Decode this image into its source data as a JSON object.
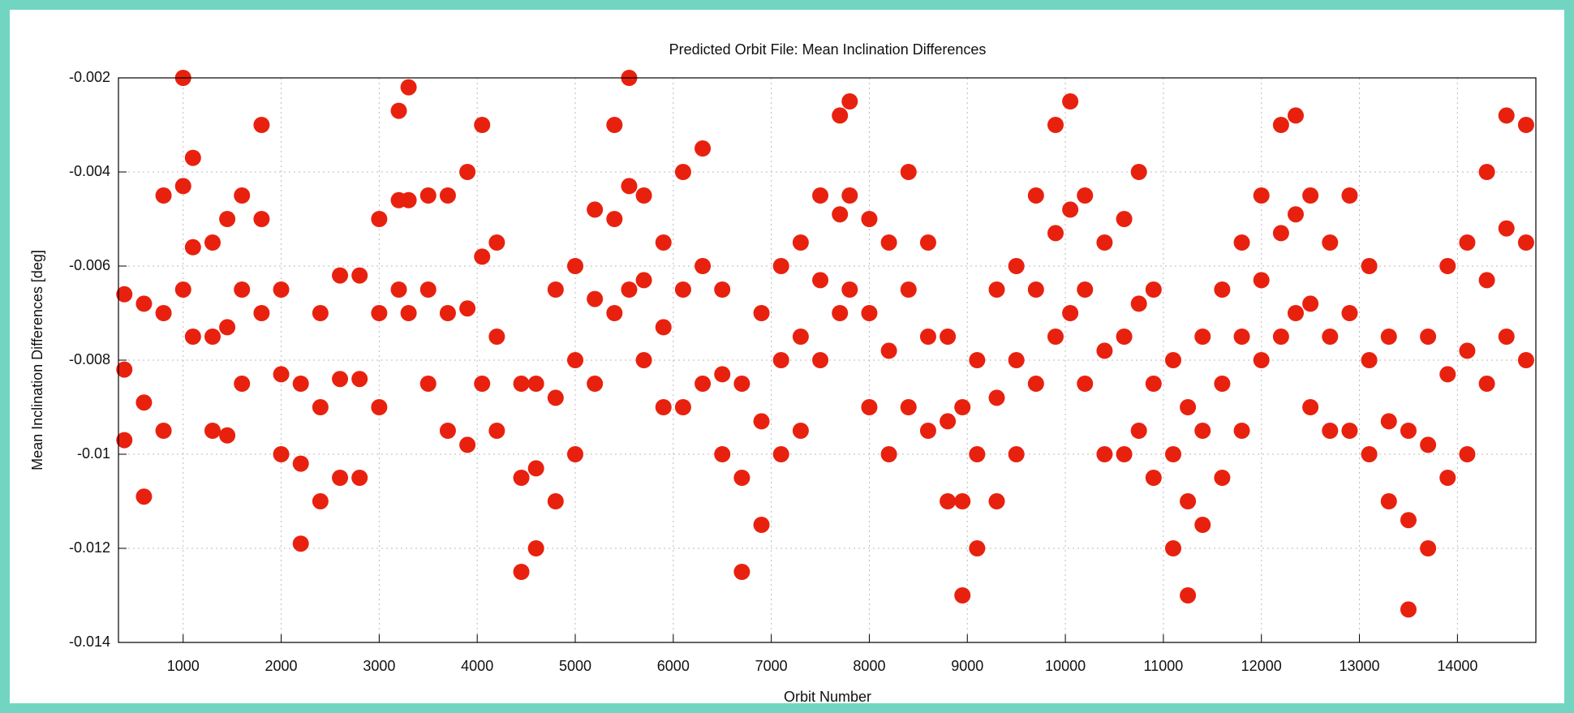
{
  "chart_data": {
    "type": "scatter",
    "title": "Predicted Orbit File: Mean Inclination Differences",
    "x_label": "Orbit Number",
    "y_label": "Mean Inclination Differences [deg]",
    "xlim": [
      340,
      14800
    ],
    "ylim": [
      -0.014,
      -0.002
    ],
    "xticks": [
      1000,
      2000,
      3000,
      4000,
      5000,
      6000,
      7000,
      8000,
      9000,
      10000,
      11000,
      12000,
      13000,
      14000
    ],
    "yticks": [
      -0.014,
      -0.012,
      -0.01,
      -0.008,
      -0.006,
      -0.004,
      -0.002
    ],
    "grid": true,
    "series": [
      {
        "color": "#e8210f",
        "x": [
          400,
          400,
          400,
          600,
          600,
          600,
          800,
          800,
          800,
          1000,
          1000,
          1000,
          1100,
          1100,
          1100,
          1300,
          1300,
          1300,
          1450,
          1450,
          1450,
          1600,
          1600,
          1600,
          1800,
          1800,
          1800,
          2000,
          2000,
          2000,
          2200,
          2200,
          2200,
          2400,
          2400,
          2400,
          2600,
          2600,
          2600,
          2800,
          2800,
          2800,
          3000,
          3000,
          3000,
          3200,
          3200,
          3200,
          3300,
          3300,
          3300,
          3500,
          3500,
          3500,
          3700,
          3700,
          3700,
          3900,
          3900,
          3900,
          4050,
          4050,
          4050,
          4200,
          4200,
          4200,
          4450,
          4450,
          4450,
          4600,
          4600,
          4600,
          4800,
          4800,
          4800,
          5000,
          5000,
          5000,
          5200,
          5200,
          5200,
          5400,
          5400,
          5400,
          5550,
          5550,
          5550,
          5700,
          5700,
          5700,
          5900,
          5900,
          5900,
          6100,
          6100,
          6100,
          6300,
          6300,
          6300,
          6500,
          6500,
          6500,
          6700,
          6700,
          6700,
          6900,
          6900,
          6900,
          7100,
          7100,
          7100,
          7300,
          7300,
          7300,
          7500,
          7500,
          7500,
          7700,
          7700,
          7700,
          7800,
          7800,
          7800,
          8000,
          8000,
          8000,
          8200,
          8200,
          8200,
          8400,
          8400,
          8400,
          8600,
          8600,
          8600,
          8800,
          8800,
          8800,
          8950,
          8950,
          8950,
          9100,
          9100,
          9100,
          9300,
          9300,
          9300,
          9500,
          9500,
          9500,
          9700,
          9700,
          9700,
          9900,
          9900,
          9900,
          10050,
          10050,
          10050,
          10200,
          10200,
          10200,
          10400,
          10400,
          10400,
          10600,
          10600,
          10600,
          10750,
          10750,
          10750,
          10900,
          10900,
          10900,
          11100,
          11100,
          11100,
          11250,
          11250,
          11250,
          11400,
          11400,
          11400,
          11600,
          11600,
          11600,
          11800,
          11800,
          11800,
          12000,
          12000,
          12000,
          12200,
          12200,
          12200,
          12350,
          12350,
          12350,
          12500,
          12500,
          12500,
          12700,
          12700,
          12700,
          12900,
          12900,
          12900,
          13100,
          13100,
          13100,
          13300,
          13300,
          13300,
          13500,
          13500,
          13500,
          13700,
          13700,
          13700,
          13900,
          13900,
          13900,
          14100,
          14100,
          14100,
          14300,
          14300,
          14300,
          14500,
          14500,
          14500,
          14700,
          14700,
          14700
        ],
        "values": [
          -0.0097,
          -0.0082,
          -0.0066,
          -0.0109,
          -0.0089,
          -0.0068,
          -0.0095,
          -0.007,
          -0.0045,
          -0.0065,
          -0.0043,
          -0.002,
          -0.0075,
          -0.0056,
          -0.0037,
          -0.0095,
          -0.0075,
          -0.0055,
          -0.0096,
          -0.0073,
          -0.005,
          -0.0085,
          -0.0065,
          -0.0045,
          -0.007,
          -0.005,
          -0.003,
          -0.01,
          -0.0083,
          -0.0065,
          -0.0119,
          -0.0102,
          -0.0085,
          -0.011,
          -0.009,
          -0.007,
          -0.0105,
          -0.0084,
          -0.0062,
          -0.0105,
          -0.0084,
          -0.0062,
          -0.009,
          -0.007,
          -0.005,
          -0.0065,
          -0.0046,
          -0.0027,
          -0.007,
          -0.0046,
          -0.0022,
          -0.0085,
          -0.0065,
          -0.0045,
          -0.0095,
          -0.007,
          -0.0045,
          -0.0098,
          -0.0069,
          -0.004,
          -0.0085,
          -0.0058,
          -0.003,
          -0.0095,
          -0.0075,
          -0.0055,
          -0.0125,
          -0.0105,
          -0.0085,
          -0.012,
          -0.0103,
          -0.0085,
          -0.011,
          -0.0088,
          -0.0065,
          -0.01,
          -0.008,
          -0.006,
          -0.0085,
          -0.0067,
          -0.0048,
          -0.007,
          -0.005,
          -0.003,
          -0.0065,
          -0.0043,
          -0.002,
          -0.008,
          -0.0063,
          -0.0045,
          -0.009,
          -0.0073,
          -0.0055,
          -0.009,
          -0.0065,
          -0.004,
          -0.0085,
          -0.006,
          -0.0035,
          -0.01,
          -0.0083,
          -0.0065,
          -0.0125,
          -0.0105,
          -0.0085,
          -0.0115,
          -0.0093,
          -0.007,
          -0.01,
          -0.008,
          -0.006,
          -0.0095,
          -0.0075,
          -0.0055,
          -0.008,
          -0.0063,
          -0.0045,
          -0.007,
          -0.0049,
          -0.0028,
          -0.0065,
          -0.0045,
          -0.0025,
          -0.009,
          -0.007,
          -0.005,
          -0.01,
          -0.0078,
          -0.0055,
          -0.009,
          -0.0065,
          -0.004,
          -0.0095,
          -0.0075,
          -0.0055,
          -0.011,
          -0.0093,
          -0.0075,
          -0.013,
          -0.011,
          -0.009,
          -0.012,
          -0.01,
          -0.008,
          -0.011,
          -0.0088,
          -0.0065,
          -0.01,
          -0.008,
          -0.006,
          -0.0085,
          -0.0065,
          -0.0045,
          -0.0075,
          -0.0053,
          -0.003,
          -0.007,
          -0.0048,
          -0.0025,
          -0.0085,
          -0.0065,
          -0.0045,
          -0.01,
          -0.0078,
          -0.0055,
          -0.01,
          -0.0075,
          -0.005,
          -0.0095,
          -0.0068,
          -0.004,
          -0.0105,
          -0.0085,
          -0.0065,
          -0.012,
          -0.01,
          -0.008,
          -0.013,
          -0.011,
          -0.009,
          -0.0115,
          -0.0095,
          -0.0075,
          -0.0105,
          -0.0085,
          -0.0065,
          -0.0095,
          -0.0075,
          -0.0055,
          -0.008,
          -0.0063,
          -0.0045,
          -0.0075,
          -0.0053,
          -0.003,
          -0.007,
          -0.0049,
          -0.0028,
          -0.009,
          -0.0068,
          -0.0045,
          -0.0095,
          -0.0075,
          -0.0055,
          -0.0095,
          -0.007,
          -0.0045,
          -0.01,
          -0.008,
          -0.006,
          -0.011,
          -0.0093,
          -0.0075,
          -0.0133,
          -0.0114,
          -0.0095,
          -0.012,
          -0.0098,
          -0.0075,
          -0.0105,
          -0.0083,
          -0.006,
          -0.01,
          -0.0078,
          -0.0055,
          -0.0085,
          -0.0063,
          -0.004,
          -0.0075,
          -0.0052,
          -0.0028,
          -0.008,
          -0.0055,
          -0.003
        ]
      }
    ]
  }
}
